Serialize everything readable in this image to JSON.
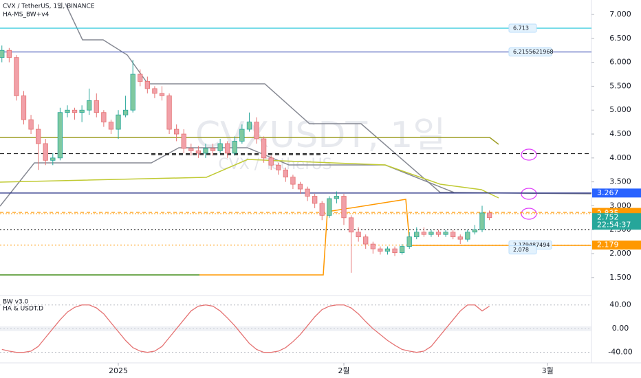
{
  "chart_data": {
    "type": "candlestick",
    "title": "CVX / TetherUS, 1일, BINANCE",
    "indicator": "HA-MS_BW+v4",
    "watermark": "CVXUSDT, 1일",
    "watermark_sub": "CVX / TetherUS",
    "x": [
      -16,
      -15,
      -14,
      -13,
      -12,
      -11,
      -10,
      -9,
      -8,
      -7,
      -6,
      -5,
      -4,
      -3,
      -2,
      -1,
      0,
      1,
      2,
      3,
      4,
      5,
      6,
      7,
      8,
      9,
      10,
      11,
      12,
      13,
      14,
      15,
      16,
      17,
      18,
      19,
      20,
      21,
      22,
      23,
      24,
      25,
      26,
      27,
      28,
      29,
      30,
      31,
      32,
      33,
      34,
      35,
      36,
      37,
      38,
      39,
      40,
      41,
      42,
      43,
      44,
      45,
      46,
      47,
      48,
      49,
      50,
      51
    ],
    "open": [
      6.1,
      6.25,
      6.1,
      5.3,
      4.8,
      4.6,
      4.3,
      3.95,
      4.0,
      4.95,
      5.0,
      4.95,
      5.0,
      5.2,
      4.95,
      4.75,
      4.6,
      4.9,
      5.0,
      5.75,
      5.6,
      5.45,
      5.35,
      5.3,
      4.6,
      4.5,
      4.2,
      4.15,
      4.1,
      4.2,
      4.15,
      4.3,
      4.1,
      4.35,
      4.6,
      4.75,
      4.4,
      4.0,
      3.85,
      3.75,
      3.6,
      3.45,
      3.35,
      3.2,
      3.05,
      2.8,
      3.15,
      3.2,
      2.75,
      2.45,
      2.35,
      2.2,
      2.1,
      2.05,
      2.1,
      2.02,
      2.15,
      2.35,
      2.45,
      2.4,
      2.45,
      2.4,
      2.45,
      2.35,
      2.3,
      2.45,
      2.5,
      2.85
    ],
    "high": [
      6.35,
      6.3,
      6.15,
      5.4,
      4.9,
      4.7,
      4.4,
      4.1,
      5.05,
      5.1,
      5.05,
      5.1,
      5.45,
      5.35,
      5.0,
      4.8,
      5.0,
      5.3,
      6.05,
      5.85,
      5.7,
      5.5,
      5.5,
      5.35,
      4.7,
      4.6,
      4.3,
      4.25,
      4.3,
      4.3,
      4.4,
      4.35,
      4.45,
      4.7,
      4.95,
      4.85,
      4.45,
      4.05,
      3.9,
      3.8,
      3.65,
      3.5,
      3.4,
      3.25,
      3.1,
      3.2,
      3.3,
      3.25,
      2.8,
      2.55,
      2.4,
      2.25,
      2.15,
      2.15,
      2.15,
      2.2,
      2.45,
      2.55,
      2.55,
      2.5,
      2.5,
      2.5,
      2.5,
      2.4,
      2.5,
      2.6,
      3.0,
      2.9
    ],
    "low": [
      6.0,
      6.0,
      5.2,
      4.7,
      4.5,
      3.75,
      3.85,
      3.85,
      3.95,
      4.85,
      4.8,
      4.75,
      4.9,
      4.85,
      4.65,
      4.5,
      4.4,
      4.85,
      4.95,
      5.5,
      5.35,
      5.25,
      5.2,
      4.5,
      4.35,
      4.1,
      4.05,
      4.0,
      4.0,
      4.05,
      4.1,
      4.0,
      4.05,
      4.3,
      4.55,
      4.3,
      3.9,
      3.75,
      3.65,
      3.5,
      3.35,
      3.25,
      3.1,
      2.95,
      2.7,
      2.75,
      3.05,
      2.6,
      1.6,
      2.25,
      2.1,
      2.0,
      1.98,
      1.98,
      1.95,
      1.98,
      2.1,
      2.3,
      2.35,
      2.35,
      2.35,
      2.35,
      2.3,
      2.2,
      2.25,
      2.4,
      2.45,
      2.7
    ],
    "close": [
      6.25,
      6.1,
      5.3,
      4.8,
      4.6,
      4.3,
      3.95,
      4.0,
      4.95,
      5.0,
      4.95,
      5.0,
      5.2,
      4.95,
      4.75,
      4.6,
      4.9,
      5.0,
      5.75,
      5.6,
      5.45,
      5.35,
      5.3,
      4.6,
      4.5,
      4.2,
      4.15,
      4.1,
      4.2,
      4.15,
      4.3,
      4.1,
      4.35,
      4.6,
      4.75,
      4.4,
      4.0,
      3.85,
      3.75,
      3.6,
      3.45,
      3.35,
      3.2,
      3.05,
      2.8,
      3.15,
      3.2,
      2.75,
      2.45,
      2.35,
      2.2,
      2.1,
      2.05,
      2.1,
      2.02,
      2.15,
      2.35,
      2.45,
      2.4,
      2.45,
      2.4,
      2.45,
      2.35,
      2.3,
      2.45,
      2.5,
      2.85,
      2.752
    ],
    "up_color": "#7fc9a0",
    "down_color": "#f1a0a8",
    "xlim": [
      -16.26,
      65.03
    ],
    "xticks": [
      {
        "value": 0,
        "label": "2025"
      },
      {
        "value": 31,
        "label": "2월"
      },
      {
        "value": 59,
        "label": "3월"
      }
    ],
    "ylim": [
      1.124,
      7.302
    ],
    "yticks": [
      {
        "value": 1.5,
        "label": "1.500"
      },
      {
        "value": 2,
        "label": "2.000"
      },
      {
        "value": 2.5,
        "label": "2.500"
      },
      {
        "value": 3,
        "label": "3.000"
      },
      {
        "value": 3.5,
        "label": "3.500"
      },
      {
        "value": 4,
        "label": "4.000"
      },
      {
        "value": 4.5,
        "label": "4.500"
      },
      {
        "value": 5,
        "label": "5.000"
      },
      {
        "value": 5.5,
        "label": "5.500"
      },
      {
        "value": 6,
        "label": "6.000"
      },
      {
        "value": 6.5,
        "label": "6.500"
      },
      {
        "value": 7,
        "label": "7.000"
      }
    ],
    "levels": [
      {
        "value": 6.713,
        "color": "#26c6da",
        "dash": "none"
      },
      {
        "value": 6.2155621968,
        "color": "#5c6bc0",
        "dash": "none"
      },
      {
        "value": 4.09,
        "color": "#222222",
        "dash": "6 4"
      },
      {
        "value": 3.267,
        "color": "#1a237e",
        "dash": "none"
      },
      {
        "value": 2.862,
        "color": "#ff9800",
        "dash": "5 4"
      },
      {
        "value": 2.835,
        "color": "#ffb74d",
        "dash": "2 2"
      },
      {
        "value": 2.5,
        "color": "#222222",
        "dash": "2 3"
      },
      {
        "value": 2.179,
        "color": "#ff9800",
        "dash": "2 3"
      }
    ],
    "line_labels": [
      6.713,
      6.2155621968,
      2.179487494,
      2.078
    ],
    "price_tags": [
      {
        "value": 3.267,
        "color": "#2962ff"
      },
      {
        "value": 2.862,
        "color": "#ff9800"
      },
      {
        "value": 2.835,
        "color": "#ff9800"
      },
      {
        "value": 2.752,
        "color": "#26a69a",
        "countdown": "22:54:37"
      },
      {
        "value": 2.179,
        "color": "#ff9800"
      }
    ],
    "oscillator": {
      "title": "BW v3.0",
      "subtitle": "HA & USDT.D",
      "ylim": [
        -57.8,
        54.8
      ],
      "yticks": [
        {
          "value": 40,
          "label": "40.00"
        },
        {
          "value": 0,
          "label": "0.00"
        },
        {
          "value": -40,
          "label": "-40.00"
        }
      ],
      "series": [
        {
          "color": "#e57373",
          "values": [
            -35,
            -38,
            -40,
            -40,
            -38,
            -30,
            -15,
            0,
            15,
            28,
            36,
            40,
            40,
            35,
            25,
            10,
            -5,
            -20,
            -32,
            -38,
            -40,
            -38,
            -30,
            -15,
            0,
            15,
            30,
            38,
            40,
            38,
            30,
            18,
            5,
            -10,
            -25,
            -35,
            -40,
            -40,
            -38,
            -32,
            -22,
            -10,
            5,
            20,
            32,
            38,
            40,
            40,
            35,
            25,
            12,
            0,
            -10,
            -20,
            -28,
            -35,
            -38,
            -40,
            -38,
            -30,
            -15,
            0,
            15,
            30,
            40,
            40,
            30,
            38
          ]
        }
      ]
    }
  }
}
